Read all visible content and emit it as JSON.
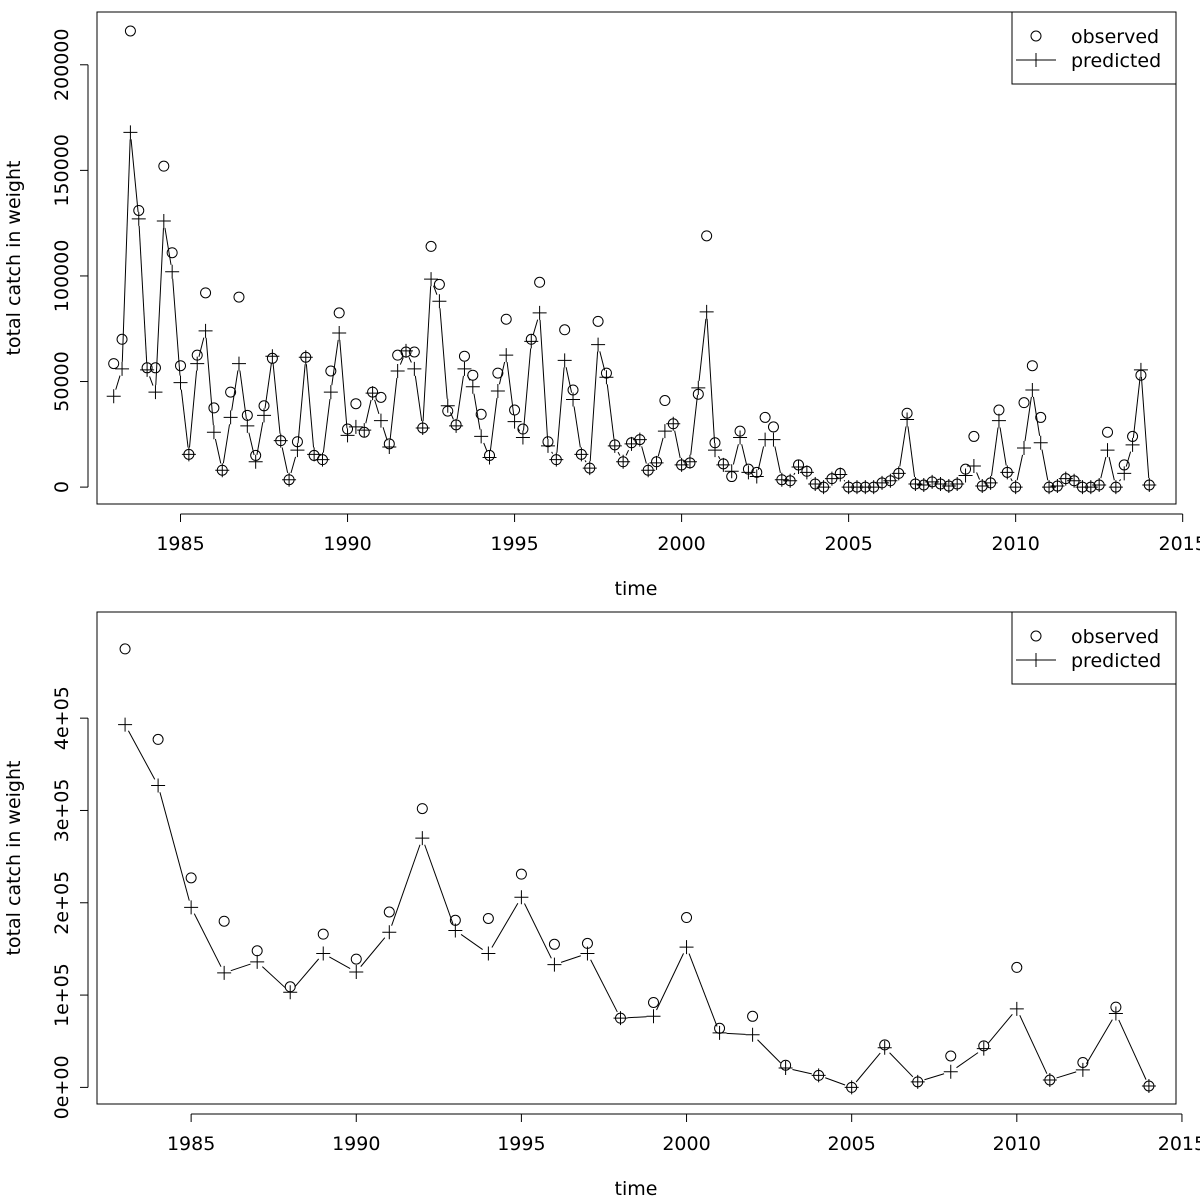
{
  "chart_data": [
    {
      "type": "scatter",
      "xlabel": "time",
      "ylabel": "total catch in weight",
      "xlim": [
        1982.5,
        2014.8
      ],
      "ylim": [
        -8000,
        225000
      ],
      "xticks": [
        1985,
        1990,
        1995,
        2000,
        2005,
        2010,
        2015
      ],
      "xtick_labels": [
        "1985",
        "1990",
        "1995",
        "2000",
        "2005",
        "2010",
        "2015"
      ],
      "yticks": [
        0,
        50000,
        100000,
        150000,
        200000
      ],
      "ytick_labels": [
        "0",
        "50000",
        "100000",
        "150000",
        "200000"
      ],
      "grid": false,
      "legend_position": "top-right",
      "legend": {
        "observed": "observed",
        "predicted": "predicted"
      },
      "series": [
        {
          "name": "observed",
          "marker": "circle",
          "line": false,
          "x": [
            1983.0,
            1983.25,
            1983.5,
            1983.75,
            1984.0,
            1984.25,
            1984.5,
            1984.75,
            1985.0,
            1985.25,
            1985.5,
            1985.75,
            1986.0,
            1986.25,
            1986.5,
            1986.75,
            1987.0,
            1987.25,
            1987.5,
            1987.75,
            1988.0,
            1988.25,
            1988.5,
            1988.75,
            1989.0,
            1989.25,
            1989.5,
            1989.75,
            1990.0,
            1990.25,
            1990.5,
            1990.75,
            1991.0,
            1991.25,
            1991.5,
            1991.75,
            1992.0,
            1992.25,
            1992.5,
            1992.75,
            1993.0,
            1993.25,
            1993.5,
            1993.75,
            1994.0,
            1994.25,
            1994.5,
            1994.75,
            1995.0,
            1995.25,
            1995.5,
            1995.75,
            1996.0,
            1996.25,
            1996.5,
            1996.75,
            1997.0,
            1997.25,
            1997.5,
            1997.75,
            1998.0,
            1998.25,
            1998.5,
            1998.75,
            1999.0,
            1999.25,
            1999.5,
            1999.75,
            2000.0,
            2000.25,
            2000.5,
            2000.75,
            2001.0,
            2001.25,
            2001.5,
            2001.75,
            2002.0,
            2002.25,
            2002.5,
            2002.75,
            2003.0,
            2003.25,
            2003.5,
            2003.75,
            2004.0,
            2004.25,
            2004.5,
            2004.75,
            2005.0,
            2005.25,
            2005.5,
            2005.75,
            2006.0,
            2006.25,
            2006.5,
            2006.75,
            2007.0,
            2007.25,
            2007.5,
            2007.75,
            2008.0,
            2008.25,
            2008.5,
            2008.75,
            2009.0,
            2009.25,
            2009.5,
            2009.75,
            2010.0,
            2010.25,
            2010.5,
            2010.75,
            2011.0,
            2011.25,
            2011.5,
            2011.75,
            2012.0,
            2012.25,
            2012.5,
            2012.75,
            2013.0,
            2013.25,
            2013.5,
            2013.75,
            2014.0
          ],
          "y": [
            58500,
            70000,
            216000,
            131000,
            56500,
            56500,
            152000,
            111000,
            57500,
            15500,
            62500,
            92000,
            37500,
            8000,
            45000,
            90000,
            34000,
            15000,
            38500,
            61000,
            22000,
            3500,
            21500,
            61500,
            15000,
            13000,
            55000,
            82500,
            27500,
            39500,
            26000,
            45000,
            42500,
            20500,
            62500,
            64000,
            64000,
            28000,
            114000,
            96000,
            36000,
            29500,
            62000,
            53000,
            34500,
            15000,
            54000,
            79500,
            36500,
            27500,
            70000,
            97000,
            21500,
            13000,
            74500,
            46000,
            15500,
            9000,
            78500,
            54000,
            20000,
            12000,
            21000,
            22500,
            8000,
            12000,
            41000,
            30000,
            10500,
            11500,
            44000,
            119000,
            21000,
            11000,
            5000,
            26500,
            8500,
            7000,
            33000,
            28500,
            3500,
            3000,
            10500,
            7500,
            1500,
            0,
            4000,
            6500,
            0,
            0,
            0,
            0,
            2000,
            3000,
            6500,
            35000,
            1500,
            1000,
            2500,
            1500,
            500,
            1500,
            8500,
            24000,
            500,
            2000,
            36500,
            7000,
            0,
            40000,
            57500,
            33000,
            0,
            500,
            4000,
            3000,
            0,
            0,
            1000,
            26000,
            0,
            10500,
            24000,
            53000,
            1000
          ]
        },
        {
          "name": "predicted",
          "marker": "plus",
          "line": true,
          "x": [
            1983.0,
            1983.25,
            1983.5,
            1983.75,
            1984.0,
            1984.25,
            1984.5,
            1984.75,
            1985.0,
            1985.25,
            1985.5,
            1985.75,
            1986.0,
            1986.25,
            1986.5,
            1986.75,
            1987.0,
            1987.25,
            1987.5,
            1987.75,
            1988.0,
            1988.25,
            1988.5,
            1988.75,
            1989.0,
            1989.25,
            1989.5,
            1989.75,
            1990.0,
            1990.25,
            1990.5,
            1990.75,
            1991.0,
            1991.25,
            1991.5,
            1991.75,
            1992.0,
            1992.25,
            1992.5,
            1992.75,
            1993.0,
            1993.25,
            1993.5,
            1993.75,
            1994.0,
            1994.25,
            1994.5,
            1994.75,
            1995.0,
            1995.25,
            1995.5,
            1995.75,
            1996.0,
            1996.25,
            1996.5,
            1996.75,
            1997.0,
            1997.25,
            1997.5,
            1997.75,
            1998.0,
            1998.25,
            1998.5,
            1998.75,
            1999.0,
            1999.25,
            1999.5,
            1999.75,
            2000.0,
            2000.25,
            2000.5,
            2000.75,
            2001.0,
            2001.25,
            2001.5,
            2001.75,
            2002.0,
            2002.25,
            2002.5,
            2002.75,
            2003.0,
            2003.25,
            2003.5,
            2003.75,
            2004.0,
            2004.25,
            2004.5,
            2004.75,
            2005.0,
            2005.25,
            2005.5,
            2005.75,
            2006.0,
            2006.25,
            2006.5,
            2006.75,
            2007.0,
            2007.25,
            2007.5,
            2007.75,
            2008.0,
            2008.25,
            2008.5,
            2008.75,
            2009.0,
            2009.25,
            2009.5,
            2009.75,
            2010.0,
            2010.25,
            2010.5,
            2010.75,
            2011.0,
            2011.25,
            2011.5,
            2011.75,
            2012.0,
            2012.25,
            2012.5,
            2012.75,
            2013.0,
            2013.25,
            2013.5,
            2013.75,
            2014.0
          ],
          "y": [
            43000,
            56000,
            168000,
            127000,
            55500,
            45000,
            126000,
            102000,
            49500,
            15500,
            58500,
            74000,
            26000,
            8000,
            33000,
            58500,
            29000,
            12000,
            34000,
            62000,
            22000,
            3500,
            17500,
            61500,
            15500,
            13000,
            45000,
            73000,
            24500,
            28500,
            27000,
            44500,
            31500,
            19000,
            55000,
            64500,
            56000,
            28000,
            98500,
            88000,
            38500,
            29000,
            56000,
            47500,
            24000,
            14000,
            45500,
            62500,
            31000,
            23500,
            69000,
            82500,
            19500,
            13000,
            60000,
            41500,
            15500,
            9000,
            67500,
            52000,
            19500,
            12000,
            20500,
            22500,
            8000,
            11500,
            26500,
            30000,
            10500,
            12000,
            47000,
            83000,
            17500,
            10500,
            7500,
            23500,
            7000,
            5000,
            22500,
            22500,
            3500,
            3000,
            9500,
            7000,
            1500,
            0,
            4000,
            6000,
            0,
            0,
            0,
            0,
            2000,
            3000,
            6500,
            32000,
            1500,
            1000,
            2500,
            1500,
            500,
            1500,
            5500,
            10000,
            500,
            2000,
            31500,
            7000,
            0,
            18500,
            46000,
            21000,
            0,
            500,
            4000,
            3000,
            0,
            0,
            1000,
            17500,
            0,
            6500,
            20000,
            55500,
            1000
          ]
        }
      ]
    },
    {
      "type": "scatter",
      "xlabel": "time",
      "ylabel": "total catch in weight",
      "xlim": [
        1982.15,
        2014.82
      ],
      "ylim": [
        -18000,
        515000
      ],
      "xticks": [
        1985,
        1990,
        1995,
        2000,
        2005,
        2010,
        2015
      ],
      "xtick_labels": [
        "1985",
        "1990",
        "1995",
        "2000",
        "2005",
        "2010",
        "2015"
      ],
      "yticks": [
        0,
        100000,
        200000,
        300000,
        400000
      ],
      "ytick_labels": [
        "0e+00",
        "1e+05",
        "2e+05",
        "3e+05",
        "4e+05"
      ],
      "grid": false,
      "legend_position": "top-right",
      "legend": {
        "observed": "observed",
        "predicted": "predicted"
      },
      "series": [
        {
          "name": "observed",
          "marker": "circle",
          "line": false,
          "x": [
            1983,
            1984,
            1985,
            1986,
            1987,
            1988,
            1989,
            1990,
            1991,
            1992,
            1993,
            1994,
            1995,
            1996,
            1997,
            1998,
            1999,
            2000,
            2001,
            2002,
            2003,
            2004,
            2005,
            2006,
            2007,
            2008,
            2009,
            2010,
            2011,
            2012,
            2013,
            2014
          ],
          "y": [
            475000,
            377000,
            227000,
            180000,
            148000,
            109000,
            166000,
            139000,
            190000,
            302000,
            181000,
            183000,
            231000,
            155000,
            156000,
            75000,
            92000,
            184000,
            64000,
            77000,
            24000,
            13000,
            0,
            46000,
            6000,
            34000,
            45000,
            130000,
            8000,
            27000,
            87000,
            1500
          ]
        },
        {
          "name": "predicted",
          "marker": "plus",
          "line": true,
          "x": [
            1983,
            1984,
            1985,
            1986,
            1987,
            1988,
            1989,
            1990,
            1991,
            1992,
            1993,
            1994,
            1995,
            1996,
            1997,
            1998,
            1999,
            2000,
            2001,
            2002,
            2003,
            2004,
            2005,
            2006,
            2007,
            2008,
            2009,
            2010,
            2011,
            2012,
            2013,
            2014
          ],
          "y": [
            393000,
            327000,
            195000,
            124000,
            136000,
            103000,
            145000,
            125000,
            168000,
            270000,
            170000,
            145000,
            206000,
            133000,
            145000,
            75000,
            77000,
            152000,
            59000,
            57000,
            21000,
            13000,
            0,
            43000,
            6000,
            17000,
            42000,
            85000,
            8000,
            19000,
            80000,
            1500
          ]
        }
      ]
    }
  ]
}
